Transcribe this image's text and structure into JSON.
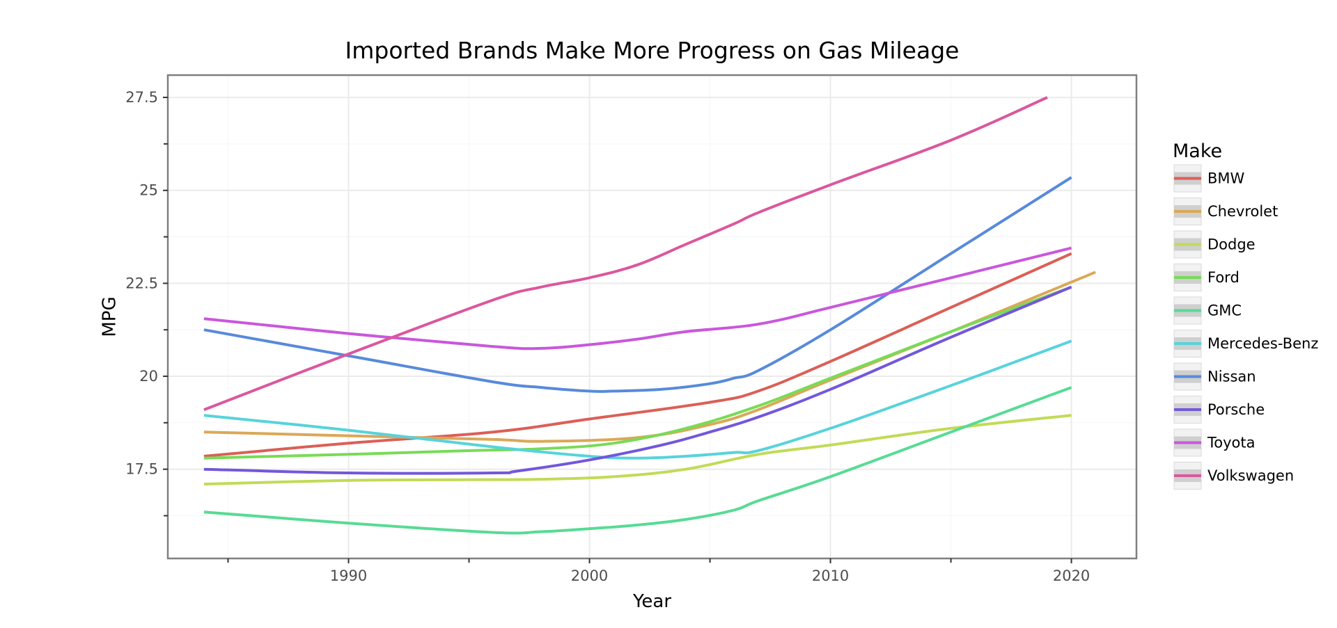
{
  "chart_data": {
    "type": "line",
    "title": "Imported Brands Make More Progress on Gas Mileage",
    "xlabel": "Year",
    "ylabel": "MPG",
    "xlim": [
      1982.5,
      2022.7
    ],
    "ylim": [
      15.1,
      28.1
    ],
    "x_ticks": [
      1990,
      2000,
      2010,
      2020
    ],
    "x_tick_labels": [
      "1990",
      "2000",
      "2010",
      "2020"
    ],
    "y_ticks": [
      17.5,
      20,
      22.5,
      25,
      27.5
    ],
    "y_tick_labels": [
      "17.5",
      "20",
      "22.5",
      "25",
      "27.5"
    ],
    "grid": true,
    "legend": {
      "title": "Make",
      "position": "right"
    },
    "series": [
      {
        "name": "BMW",
        "color": "#DB5F57",
        "x": [
          1984,
          1990,
          1996,
          2000,
          2005,
          2007,
          2010,
          2015,
          2020
        ],
        "y": [
          17.85,
          18.2,
          18.5,
          18.85,
          19.3,
          19.6,
          20.4,
          21.85,
          23.3
        ]
      },
      {
        "name": "Chevrolet",
        "color": "#DBA857",
        "x": [
          1984,
          1990,
          1996,
          1998,
          2002,
          2005,
          2007,
          2010,
          2015,
          2021
        ],
        "y": [
          18.5,
          18.4,
          18.3,
          18.25,
          18.35,
          18.7,
          19.1,
          19.9,
          21.2,
          22.8
        ]
      },
      {
        "name": "Dodge",
        "color": "#C1DB57",
        "x": [
          1984,
          1990,
          1995,
          1998,
          2001,
          2004,
          2007,
          2010,
          2015,
          2020
        ],
        "y": [
          17.1,
          17.2,
          17.22,
          17.23,
          17.3,
          17.5,
          17.9,
          18.15,
          18.6,
          18.95
        ]
      },
      {
        "name": "Ford",
        "color": "#78DB57",
        "x": [
          1984,
          1990,
          1995,
          1998,
          2001,
          2004,
          2007,
          2010,
          2015,
          2020
        ],
        "y": [
          17.8,
          17.9,
          18.0,
          18.05,
          18.2,
          18.6,
          19.2,
          19.95,
          21.2,
          22.4
        ]
      },
      {
        "name": "GMC",
        "color": "#57DB94",
        "x": [
          1984,
          1990,
          1996,
          1998,
          2000,
          2002,
          2004,
          2006,
          2007,
          2010,
          2015,
          2020
        ],
        "y": [
          16.35,
          16.05,
          15.8,
          15.82,
          15.9,
          16.0,
          16.15,
          16.4,
          16.65,
          17.3,
          18.5,
          19.7
        ]
      },
      {
        "name": "Mercedes-Benz",
        "color": "#57D3DB",
        "x": [
          1984,
          1990,
          1996,
          2000,
          2002,
          2004,
          2006,
          2007,
          2010,
          2015,
          2020
        ],
        "y": [
          18.95,
          18.55,
          18.1,
          17.85,
          17.8,
          17.85,
          17.95,
          18.0,
          18.6,
          19.75,
          20.95
        ]
      },
      {
        "name": "Nissan",
        "color": "#578ADB",
        "x": [
          1984,
          1990,
          1996,
          1998,
          2000,
          2001,
          2003,
          2005,
          2006,
          2007,
          2010,
          2015,
          2020
        ],
        "y": [
          21.25,
          20.55,
          19.85,
          19.7,
          19.6,
          19.6,
          19.65,
          19.8,
          19.95,
          20.15,
          21.25,
          23.3,
          25.35
        ]
      },
      {
        "name": "Porsche",
        "color": "#7357DB",
        "x": [
          1984,
          1990,
          1996,
          1997,
          2000,
          2003,
          2005,
          2007,
          2010,
          2015,
          2020
        ],
        "y": [
          17.5,
          17.4,
          17.4,
          17.45,
          17.75,
          18.15,
          18.5,
          18.9,
          19.65,
          21.05,
          22.4
        ]
      },
      {
        "name": "Toyota",
        "color": "#C957DB",
        "x": [
          1984,
          1990,
          1996,
          1998,
          2000,
          2002,
          2004,
          2007,
          2010,
          2015,
          2020
        ],
        "y": [
          21.55,
          21.15,
          20.8,
          20.75,
          20.85,
          21.0,
          21.2,
          21.4,
          21.85,
          22.65,
          23.45
        ]
      },
      {
        "name": "Volkswagen",
        "color": "#DB579E",
        "x": [
          1984,
          1990,
          1996,
          1998,
          2000,
          2002,
          2004,
          2006,
          2007,
          2010,
          2015,
          2019
        ],
        "y": [
          19.1,
          20.6,
          22.05,
          22.4,
          22.65,
          23.0,
          23.55,
          24.1,
          24.4,
          25.15,
          26.35,
          27.5
        ]
      }
    ]
  }
}
